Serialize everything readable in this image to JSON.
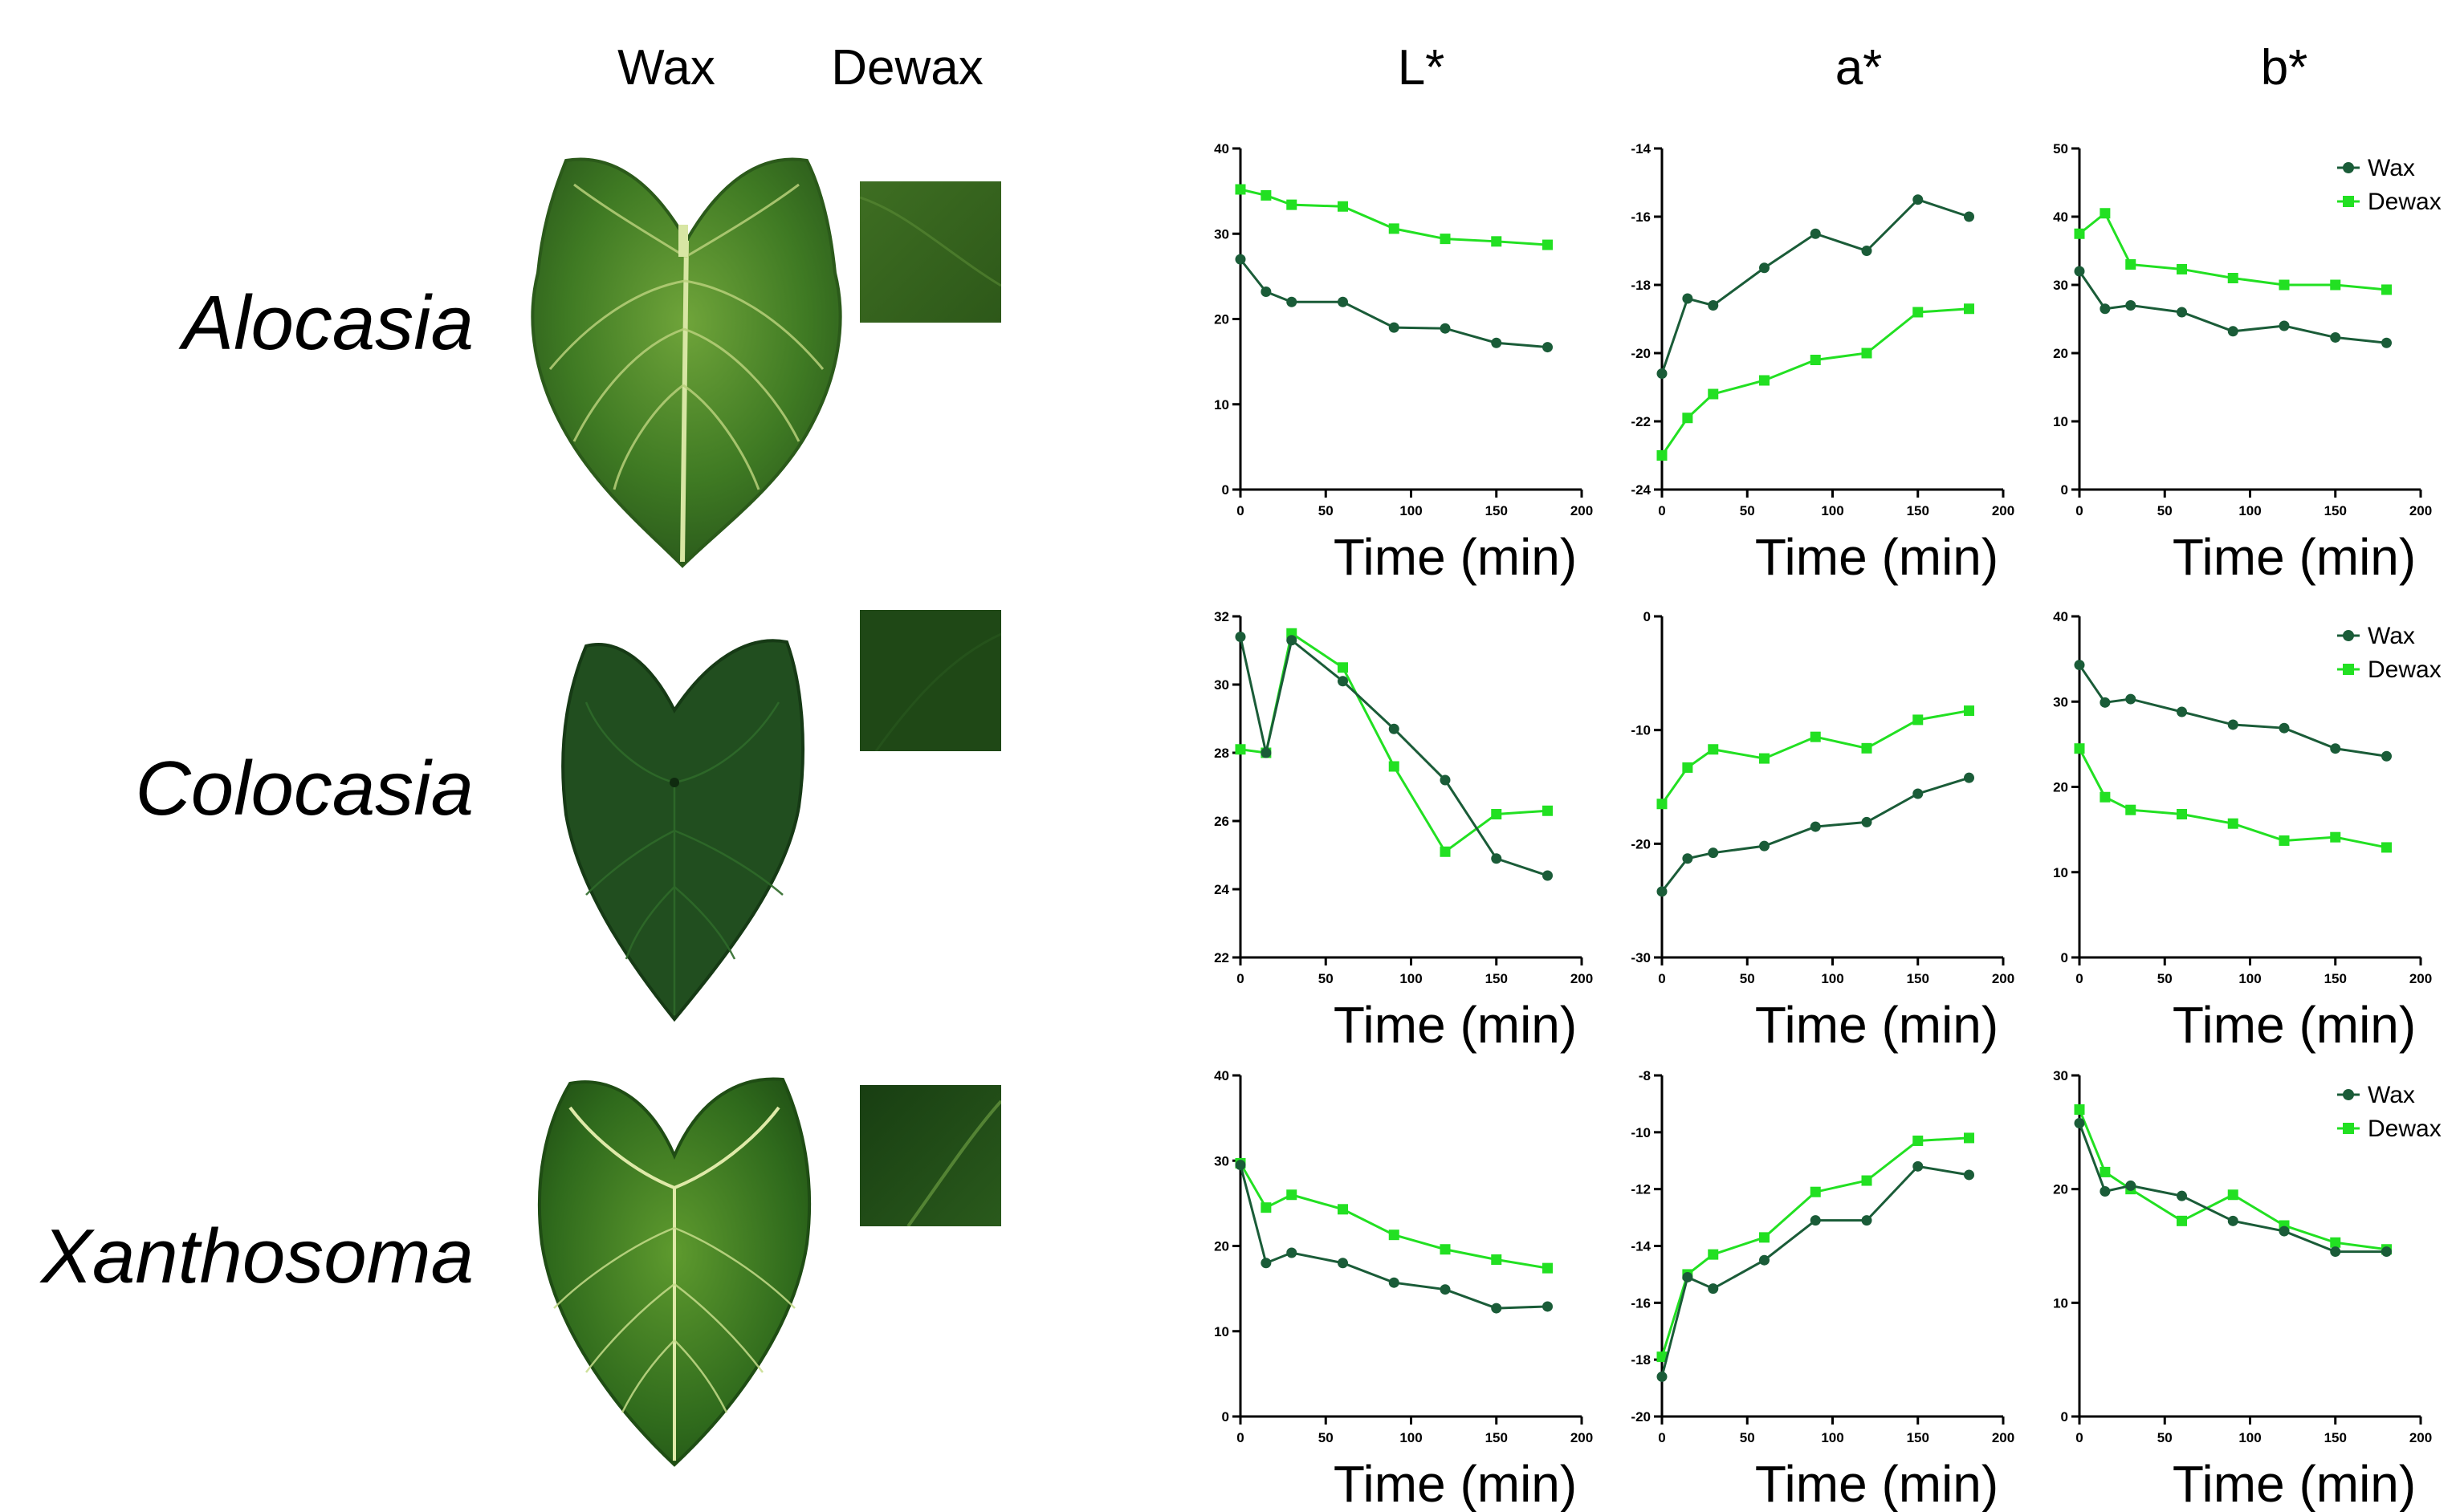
{
  "column_headers": {
    "wax": "Wax",
    "dewax": "Dewax"
  },
  "metric_headers": [
    "L*",
    "a*",
    "b*"
  ],
  "genera": [
    "Alocasia",
    "Colocasia",
    "Xanthosoma"
  ],
  "colors": {
    "wax": "#1a5c38",
    "dewax": "#22e022",
    "axis": "#000000"
  },
  "legend": {
    "wax": "Wax",
    "dewax": "Dewax"
  },
  "chart_data": [
    {
      "type": "line",
      "genus": "Alocasia",
      "metric": "L*",
      "xlabel": "Time (min)",
      "x": [
        0,
        15,
        30,
        60,
        90,
        120,
        150,
        180
      ],
      "xlim": [
        0,
        200
      ],
      "xticks": [
        0,
        50,
        100,
        150,
        200
      ],
      "ylim": [
        0,
        40
      ],
      "yticks": [
        0,
        10,
        20,
        30,
        40
      ],
      "legend": false,
      "series": [
        {
          "name": "Wax",
          "values": [
            27,
            23.2,
            22,
            22,
            19,
            18.9,
            17.2,
            16.7
          ]
        },
        {
          "name": "Dewax",
          "values": [
            35.2,
            34.5,
            33.4,
            33.2,
            30.6,
            29.4,
            29.1,
            28.7
          ]
        }
      ]
    },
    {
      "type": "line",
      "genus": "Alocasia",
      "metric": "a*",
      "xlabel": "Time (min)",
      "x": [
        0,
        15,
        30,
        60,
        90,
        120,
        150,
        180
      ],
      "xlim": [
        0,
        200
      ],
      "xticks": [
        0,
        50,
        100,
        150,
        200
      ],
      "ylim": [
        -24,
        -14
      ],
      "yticks": [
        -24,
        -22,
        -20,
        -18,
        -16,
        -14
      ],
      "legend": false,
      "series": [
        {
          "name": "Wax",
          "values": [
            -20.6,
            -18.4,
            -18.6,
            -17.5,
            -16.5,
            -17,
            -15.5,
            -16
          ]
        },
        {
          "name": "Dewax",
          "values": [
            -23,
            -21.9,
            -21.2,
            -20.8,
            -20.2,
            -20,
            -18.8,
            -18.7
          ]
        }
      ]
    },
    {
      "type": "line",
      "genus": "Alocasia",
      "metric": "b*",
      "xlabel": "Time (min)",
      "x": [
        0,
        15,
        30,
        60,
        90,
        120,
        150,
        180
      ],
      "xlim": [
        0,
        200
      ],
      "xticks": [
        0,
        50,
        100,
        150,
        200
      ],
      "ylim": [
        0,
        50
      ],
      "yticks": [
        0,
        10,
        20,
        30,
        40,
        50
      ],
      "legend": true,
      "series": [
        {
          "name": "Wax",
          "values": [
            32,
            26.5,
            27,
            26,
            23.2,
            24,
            22.3,
            21.5
          ]
        },
        {
          "name": "Dewax",
          "values": [
            37.5,
            40.5,
            33,
            32.3,
            31,
            30,
            30,
            29.3
          ]
        }
      ]
    },
    {
      "type": "line",
      "genus": "Colocasia",
      "metric": "L*",
      "xlabel": "Time (min)",
      "x": [
        0,
        15,
        30,
        60,
        90,
        120,
        150,
        180
      ],
      "xlim": [
        0,
        200
      ],
      "xticks": [
        0,
        50,
        100,
        150,
        200
      ],
      "ylim": [
        22,
        32
      ],
      "yticks": [
        22,
        24,
        26,
        28,
        30,
        32
      ],
      "legend": false,
      "series": [
        {
          "name": "Wax",
          "values": [
            31.4,
            28,
            31.3,
            30.1,
            28.7,
            27.2,
            24.9,
            24.4
          ]
        },
        {
          "name": "Dewax",
          "values": [
            28.1,
            28,
            31.5,
            30.5,
            27.6,
            25.1,
            26.2,
            26.3
          ]
        }
      ]
    },
    {
      "type": "line",
      "genus": "Colocasia",
      "metric": "a*",
      "xlabel": "Time (min)",
      "x": [
        0,
        15,
        30,
        60,
        90,
        120,
        150,
        180
      ],
      "xlim": [
        0,
        200
      ],
      "xticks": [
        0,
        50,
        100,
        150,
        200
      ],
      "ylim": [
        -30,
        0
      ],
      "yticks": [
        -30,
        -20,
        -10,
        0
      ],
      "legend": false,
      "series": [
        {
          "name": "Wax",
          "values": [
            -24.2,
            -21.3,
            -20.8,
            -20.2,
            -18.5,
            -18.1,
            -15.6,
            -14.2
          ]
        },
        {
          "name": "Dewax",
          "values": [
            -16.5,
            -13.3,
            -11.7,
            -12.5,
            -10.6,
            -11.6,
            -9.1,
            -8.3
          ]
        }
      ]
    },
    {
      "type": "line",
      "genus": "Colocasia",
      "metric": "b*",
      "xlabel": "Time (min)",
      "x": [
        0,
        15,
        30,
        60,
        90,
        120,
        150,
        180
      ],
      "xlim": [
        0,
        200
      ],
      "xticks": [
        0,
        50,
        100,
        150,
        200
      ],
      "ylim": [
        0,
        40
      ],
      "yticks": [
        0,
        10,
        20,
        30,
        40
      ],
      "legend": true,
      "series": [
        {
          "name": "Wax",
          "values": [
            34.3,
            29.9,
            30.3,
            28.8,
            27.3,
            26.9,
            24.5,
            23.6
          ]
        },
        {
          "name": "Dewax",
          "values": [
            24.5,
            18.8,
            17.3,
            16.8,
            15.7,
            13.7,
            14.1,
            12.9
          ]
        }
      ]
    },
    {
      "type": "line",
      "genus": "Xanthosoma",
      "metric": "L*",
      "xlabel": "Time (min)",
      "x": [
        0,
        15,
        30,
        60,
        90,
        120,
        150,
        180
      ],
      "xlim": [
        0,
        200
      ],
      "xticks": [
        0,
        50,
        100,
        150,
        200
      ],
      "ylim": [
        0,
        40
      ],
      "yticks": [
        0,
        10,
        20,
        30,
        40
      ],
      "legend": false,
      "series": [
        {
          "name": "Wax",
          "values": [
            29.5,
            18,
            19.2,
            18,
            15.7,
            14.9,
            12.7,
            12.9
          ]
        },
        {
          "name": "Dewax",
          "values": [
            29.7,
            24.5,
            26,
            24.3,
            21.3,
            19.6,
            18.4,
            17.4
          ]
        }
      ]
    },
    {
      "type": "line",
      "genus": "Xanthosoma",
      "metric": "a*",
      "xlabel": "Time (min)",
      "x": [
        0,
        15,
        30,
        60,
        90,
        120,
        150,
        180
      ],
      "xlim": [
        0,
        200
      ],
      "xticks": [
        0,
        50,
        100,
        150,
        200
      ],
      "ylim": [
        -20,
        -8
      ],
      "yticks": [
        -20,
        -18,
        -16,
        -14,
        -12,
        -10,
        -8
      ],
      "legend": false,
      "series": [
        {
          "name": "Wax",
          "values": [
            -18.6,
            -15.1,
            -15.5,
            -14.5,
            -13.1,
            -13.1,
            -11.2,
            -11.5
          ]
        },
        {
          "name": "Dewax",
          "values": [
            -17.9,
            -15,
            -14.3,
            -13.7,
            -12.1,
            -11.7,
            -10.3,
            -10.2
          ]
        }
      ]
    },
    {
      "type": "line",
      "genus": "Xanthosoma",
      "metric": "b*",
      "xlabel": "Time (min)",
      "x": [
        0,
        15,
        30,
        60,
        90,
        120,
        150,
        180
      ],
      "xlim": [
        0,
        200
      ],
      "xticks": [
        0,
        50,
        100,
        150,
        200
      ],
      "ylim": [
        0,
        30
      ],
      "yticks": [
        0,
        10,
        20,
        30
      ],
      "legend": true,
      "series": [
        {
          "name": "Wax",
          "values": [
            25.8,
            19.8,
            20.3,
            19.4,
            17.2,
            16.3,
            14.5,
            14.5
          ]
        },
        {
          "name": "Dewax",
          "values": [
            27,
            21.5,
            20,
            17.2,
            19.5,
            16.8,
            15.3,
            14.7
          ]
        }
      ]
    }
  ]
}
